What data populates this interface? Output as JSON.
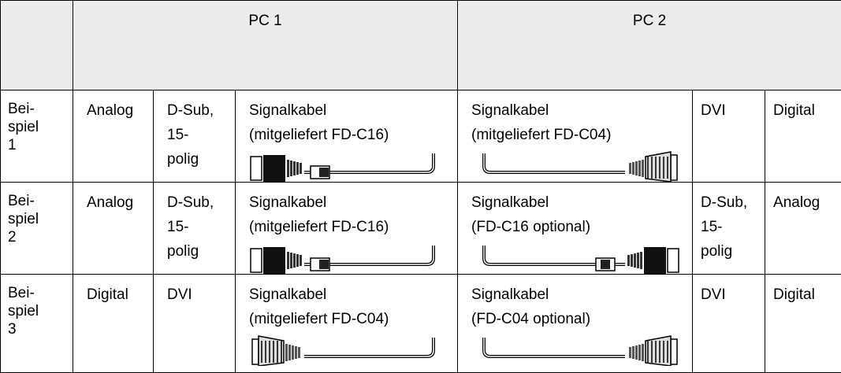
{
  "table": {
    "header": [
      "PC 1",
      "PC 2"
    ],
    "rows": [
      [
        "Bei-\nspiel\n1",
        "Analog",
        "D-Sub,\n15-\npolig",
        "Signalkabel\n(mitgeliefert FD-C16)",
        "Signalkabel\n(mitgeliefert FD-C04)",
        "DVI",
        "Digital"
      ],
      [
        "Bei-\nspiel\n2",
        "Analog",
        "D-Sub,\n15-\npolig",
        "Signalkabel\n(mitgeliefert FD-C16)",
        "Signalkabel\n(FD-C16 optional)",
        "D-Sub,\n15-\npolig",
        "Analog"
      ],
      [
        "Bei-\nspiel\n3",
        "Digital",
        "DVI",
        "Signalkabel\n(mitgeliefert FD-C04)",
        "Signalkabel\n(FD-C04 optional)",
        "DVI",
        "Digital"
      ]
    ]
  }
}
